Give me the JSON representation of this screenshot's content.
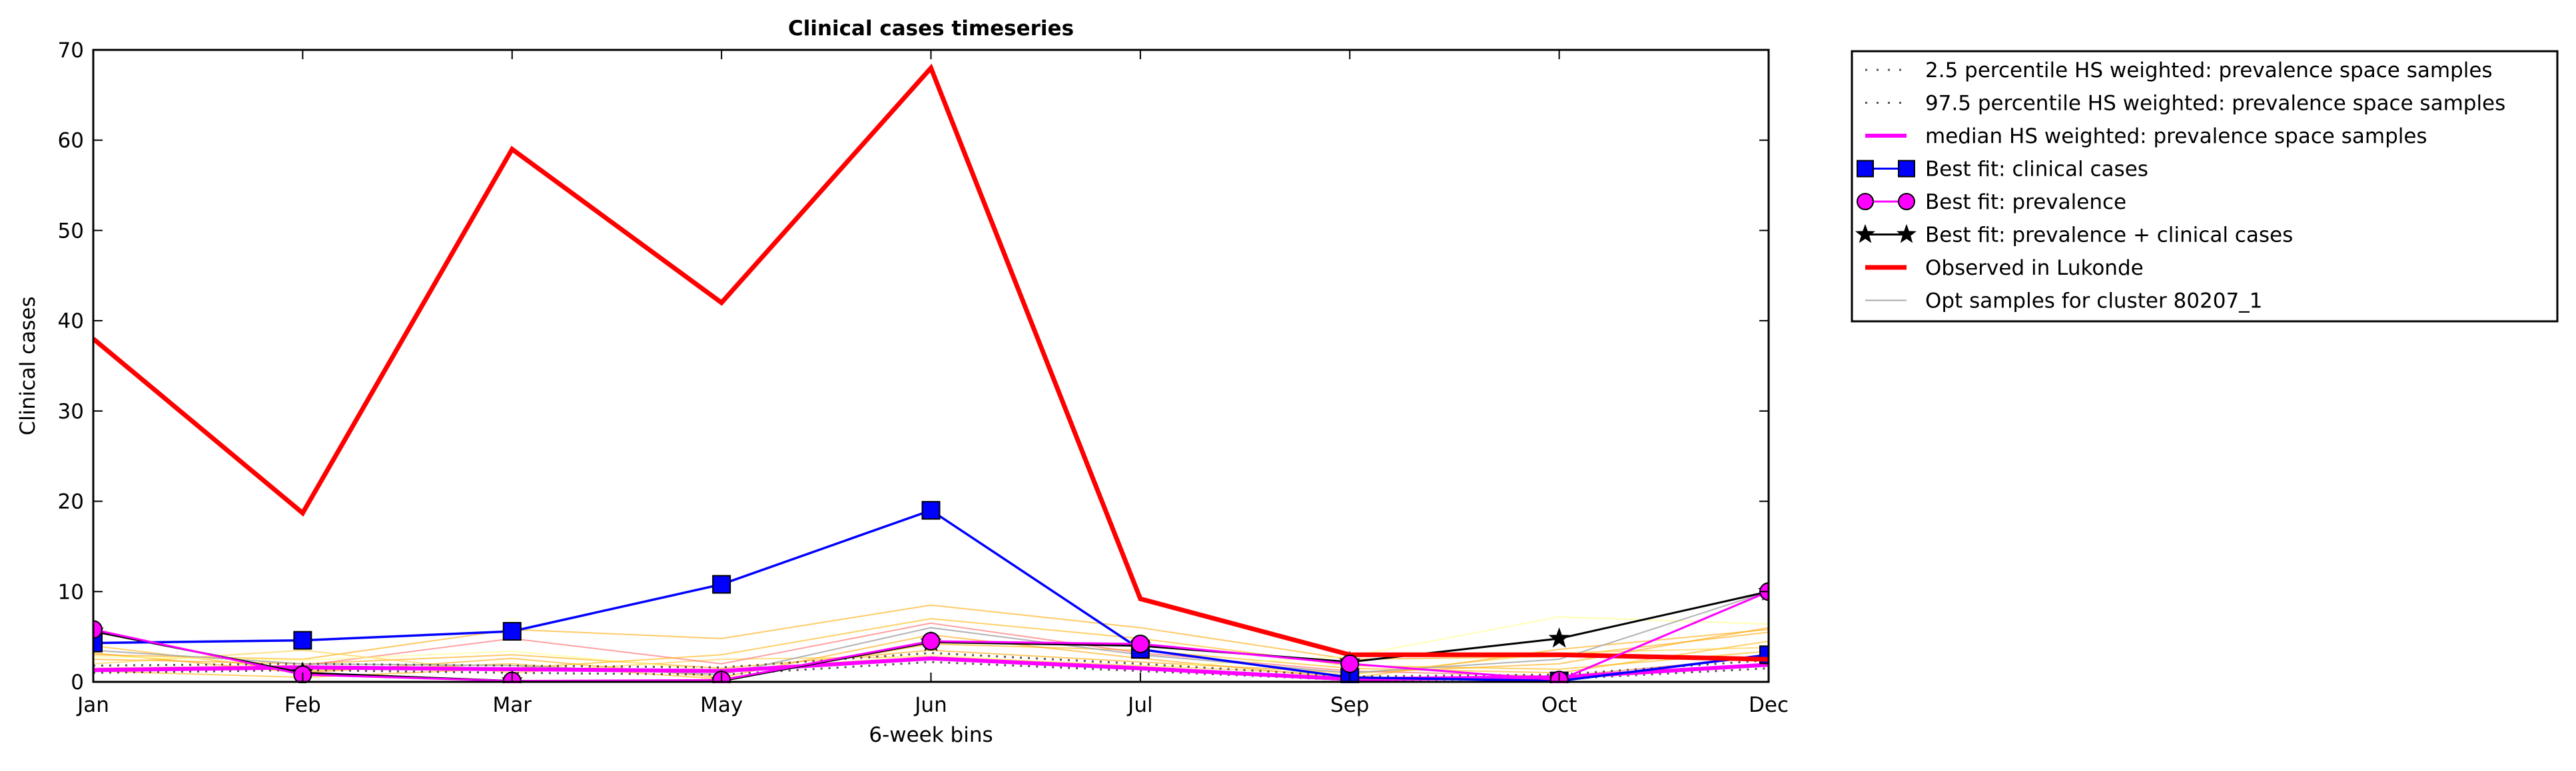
{
  "chart_data": {
    "type": "line",
    "title": "Clinical cases timeseries",
    "xlabel": "6-week bins",
    "ylabel": "Clinical cases",
    "categories": [
      "Jan",
      "Feb",
      "Mar",
      "May",
      "Jun",
      "Jul",
      "Sep",
      "Oct",
      "Dec"
    ],
    "ylim": [
      0,
      70
    ],
    "yticks": [
      0,
      10,
      20,
      30,
      40,
      50,
      60,
      70
    ],
    "grid": false,
    "legend_position": "outside-right",
    "series": [
      {
        "name": "2.5 percentile HS weighted: prevalence space samples",
        "style": "dotted",
        "color": "#555555",
        "values": [
          1.0,
          1.3,
          1.0,
          0.8,
          2.2,
          1.2,
          0.2,
          0.3,
          1.5
        ]
      },
      {
        "name": "97.5 percentile HS weighted: prevalence space samples",
        "style": "dotted",
        "color": "#555555",
        "values": [
          1.8,
          2.0,
          1.8,
          1.6,
          3.2,
          2.0,
          0.6,
          0.8,
          2.4
        ]
      },
      {
        "name": "median HS weighted: prevalence space samples",
        "style": "solid",
        "color": "#ff00ff",
        "values": [
          1.3,
          1.6,
          1.4,
          1.2,
          2.6,
          1.5,
          0.3,
          0.5,
          1.9
        ]
      },
      {
        "name": "Best fit: clinical cases",
        "style": "solid",
        "color": "#0000ff",
        "marker": "square",
        "values": [
          4.3,
          4.6,
          5.6,
          10.8,
          19.0,
          3.6,
          0.5,
          0.1,
          3.0
        ]
      },
      {
        "name": "Best fit: prevalence",
        "style": "solid",
        "color": "#ff00ff",
        "marker": "circle",
        "values": [
          5.8,
          0.8,
          0.1,
          0.2,
          4.5,
          4.2,
          2.0,
          0.2,
          10.0
        ]
      },
      {
        "name": "Best fit: prevalence + clinical cases",
        "style": "solid",
        "color": "#000000",
        "marker": "star",
        "values": [
          5.6,
          1.0,
          0.1,
          0.1,
          4.4,
          4.0,
          2.2,
          4.8,
          10.0
        ]
      },
      {
        "name": "Observed in Lukonde",
        "style": "solid",
        "color": "#ff0000",
        "values": [
          38,
          18.7,
          59,
          42,
          68,
          9.2,
          3.0,
          3.0,
          2.5
        ]
      },
      {
        "name": "Opt samples for cluster 80207_1",
        "style": "solid",
        "color": "#aaaaaa",
        "values": [
          3.5,
          2.0,
          1.8,
          0.8,
          6.0,
          3.0,
          1.0,
          2.5,
          10.0
        ]
      }
    ],
    "background_samples": [
      {
        "color": "#ffa500",
        "values": [
          3.0,
          2.5,
          5.8,
          4.8,
          8.5,
          6.0,
          2.5,
          2.8,
          5.5
        ]
      },
      {
        "color": "#ffa500",
        "values": [
          2.5,
          2.0,
          3.0,
          1.5,
          3.5,
          2.2,
          1.0,
          2.0,
          6.0
        ]
      },
      {
        "color": "#ffb300",
        "values": [
          4.0,
          1.2,
          2.0,
          0.3,
          4.2,
          3.5,
          1.5,
          1.0,
          4.5
        ]
      },
      {
        "color": "#ffcc33",
        "values": [
          2.0,
          3.5,
          1.0,
          2.5,
          2.8,
          1.8,
          0.8,
          3.2,
          3.8
        ]
      },
      {
        "color": "#ff6060",
        "values": [
          1.5,
          1.8,
          4.8,
          2.0,
          6.5,
          3.2,
          1.2,
          0.6,
          2.8
        ]
      },
      {
        "color": "#ffa500",
        "values": [
          3.2,
          1.0,
          2.6,
          0.5,
          5.2,
          2.6,
          0.4,
          3.6,
          5.8
        ]
      },
      {
        "color": "#ffff80",
        "values": [
          2.8,
          2.4,
          3.4,
          1.2,
          3.0,
          1.6,
          2.8,
          7.2,
          6.4
        ]
      },
      {
        "color": "#ffb300",
        "values": [
          1.2,
          0.5,
          1.5,
          3.0,
          7.0,
          4.8,
          1.8,
          1.4,
          3.4
        ]
      }
    ]
  }
}
